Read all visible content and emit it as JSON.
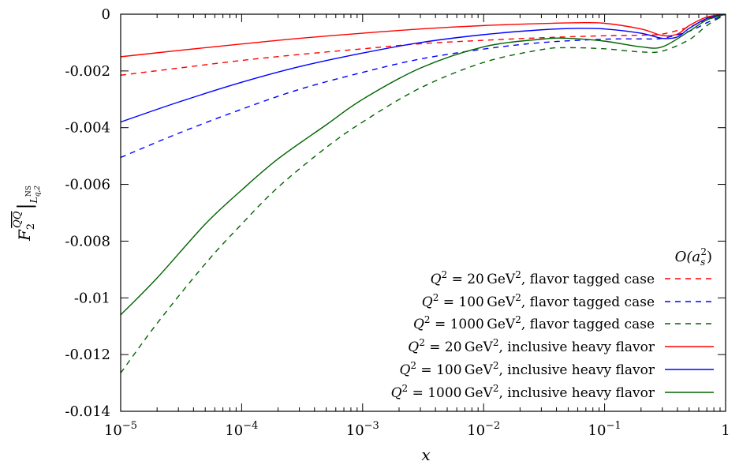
{
  "chart_data": {
    "type": "line",
    "xscale": "log",
    "xlim": [
      1e-05,
      1
    ],
    "ylim": [
      -0.014,
      0
    ],
    "xlabel": "x",
    "ylabel": "F₂^{Q̄Q}|_{L_{q,2}^{NS}}",
    "ylabel_main": "F",
    "ylabel_sub": "2",
    "ylabel_sup": "QQ",
    "ylabel_restrict": "L",
    "ylabel_restrict_sub": "q,2",
    "ylabel_restrict_sup": "NS",
    "x_ticks": [
      {
        "value": 1e-05,
        "base": "10",
        "exp": "−5"
      },
      {
        "value": 0.0001,
        "base": "10",
        "exp": "−4"
      },
      {
        "value": 0.001,
        "base": "10",
        "exp": "−3"
      },
      {
        "value": 0.01,
        "base": "10",
        "exp": "−2"
      },
      {
        "value": 0.1,
        "base": "10",
        "exp": "−1"
      },
      {
        "value": 1,
        "base": "1",
        "exp": ""
      }
    ],
    "y_ticks": [
      {
        "value": 0,
        "label": "0"
      },
      {
        "value": -0.002,
        "label": "-0.002"
      },
      {
        "value": -0.004,
        "label": "-0.004"
      },
      {
        "value": -0.006,
        "label": "-0.006"
      },
      {
        "value": -0.008,
        "label": "-0.008"
      },
      {
        "value": -0.01,
        "label": "-0.01"
      },
      {
        "value": -0.012,
        "label": "-0.012"
      },
      {
        "value": -0.014,
        "label": "-0.014"
      }
    ],
    "legend_title": "O(a_s²)",
    "legend_title_main": "O(a",
    "legend_title_sub": "s",
    "legend_title_sup": "2",
    "legend_title_close": ")",
    "legend_position": "bottom-right",
    "series": [
      {
        "name": "Q² = 20 GeV², flavor tagged case",
        "q2": "20",
        "desc": ", flavor tagged case",
        "color": "#ff0000",
        "dash": true,
        "x": [
          1e-05,
          3e-05,
          0.0001,
          0.0003,
          0.001,
          0.003,
          0.01,
          0.03,
          0.1,
          0.2,
          0.3,
          0.5,
          0.7,
          1
        ],
        "y": [
          -0.00215,
          -0.0019,
          -0.00163,
          -0.00142,
          -0.00122,
          -0.00104,
          -0.00092,
          -0.00083,
          -0.00076,
          -0.00074,
          -0.0007,
          -0.00045,
          -0.0002,
          0
        ]
      },
      {
        "name": "Q² = 100 GeV², flavor tagged case",
        "q2": "100",
        "desc": ", flavor tagged case",
        "color": "#0000ff",
        "dash": true,
        "x": [
          1e-05,
          3e-05,
          0.0001,
          0.0003,
          0.001,
          0.003,
          0.01,
          0.03,
          0.1,
          0.2,
          0.3,
          0.5,
          0.7,
          1
        ],
        "y": [
          -0.00505,
          -0.0042,
          -0.00335,
          -0.00265,
          -0.00205,
          -0.00158,
          -0.00123,
          -0.001,
          -0.00088,
          -0.00087,
          -0.00085,
          -0.0006,
          -0.0003,
          0
        ]
      },
      {
        "name": "Q² = 1000 GeV², flavor tagged case",
        "q2": "1000",
        "desc": ", flavor tagged case",
        "color": "#006400",
        "dash": true,
        "x": [
          1e-05,
          2e-05,
          5e-05,
          0.0001,
          0.0002,
          0.0005,
          0.001,
          0.003,
          0.01,
          0.03,
          0.05,
          0.1,
          0.2,
          0.3,
          0.5,
          0.7,
          1
        ],
        "y": [
          -0.01265,
          -0.0109,
          -0.0088,
          -0.0074,
          -0.0061,
          -0.0047,
          -0.0038,
          -0.0026,
          -0.0017,
          -0.00125,
          -0.00118,
          -0.00122,
          -0.00133,
          -0.0013,
          -0.0009,
          -0.0004,
          0
        ]
      },
      {
        "name": "Q² = 20 GeV², inclusive heavy flavor",
        "q2": "20",
        "desc": ", inclusive heavy flavor",
        "color": "#ff0000",
        "dash": false,
        "x": [
          1e-05,
          3e-05,
          0.0001,
          0.0003,
          0.001,
          0.003,
          0.01,
          0.03,
          0.06,
          0.1,
          0.2,
          0.3,
          0.4,
          0.5,
          0.7,
          1
        ],
        "y": [
          -0.0015,
          -0.00128,
          -0.00105,
          -0.00085,
          -0.00067,
          -0.00052,
          -0.0004,
          -0.00033,
          -0.0003,
          -0.00032,
          -0.00052,
          -0.00075,
          -0.0007,
          -0.0004,
          -0.0001,
          0
        ]
      },
      {
        "name": "Q² = 100 GeV², inclusive heavy flavor",
        "q2": "100",
        "desc": ", inclusive heavy flavor",
        "color": "#0000ff",
        "dash": false,
        "x": [
          1e-05,
          3e-05,
          0.0001,
          0.0003,
          0.001,
          0.003,
          0.01,
          0.03,
          0.06,
          0.1,
          0.2,
          0.3,
          0.4,
          0.5,
          0.7,
          1
        ],
        "y": [
          -0.0038,
          -0.0031,
          -0.0024,
          -0.00185,
          -0.00137,
          -0.001,
          -0.00072,
          -0.00055,
          -0.0005,
          -0.00052,
          -0.00067,
          -0.00085,
          -0.0008,
          -0.0005,
          -0.00015,
          0
        ]
      },
      {
        "name": "Q² = 1000 GeV², inclusive heavy flavor",
        "q2": "1000",
        "desc": ", inclusive heavy flavor",
        "color": "#006400",
        "dash": false,
        "x": [
          1e-05,
          2e-05,
          5e-05,
          0.0001,
          0.0002,
          0.0005,
          0.001,
          0.003,
          0.01,
          0.03,
          0.05,
          0.1,
          0.2,
          0.3,
          0.5,
          0.7,
          1
        ],
        "y": [
          -0.0106,
          -0.0093,
          -0.0074,
          -0.0062,
          -0.0051,
          -0.0039,
          -0.003,
          -0.0019,
          -0.00115,
          -0.00088,
          -0.00085,
          -0.00095,
          -0.00115,
          -0.00115,
          -0.0006,
          -0.0002,
          0
        ]
      }
    ]
  }
}
